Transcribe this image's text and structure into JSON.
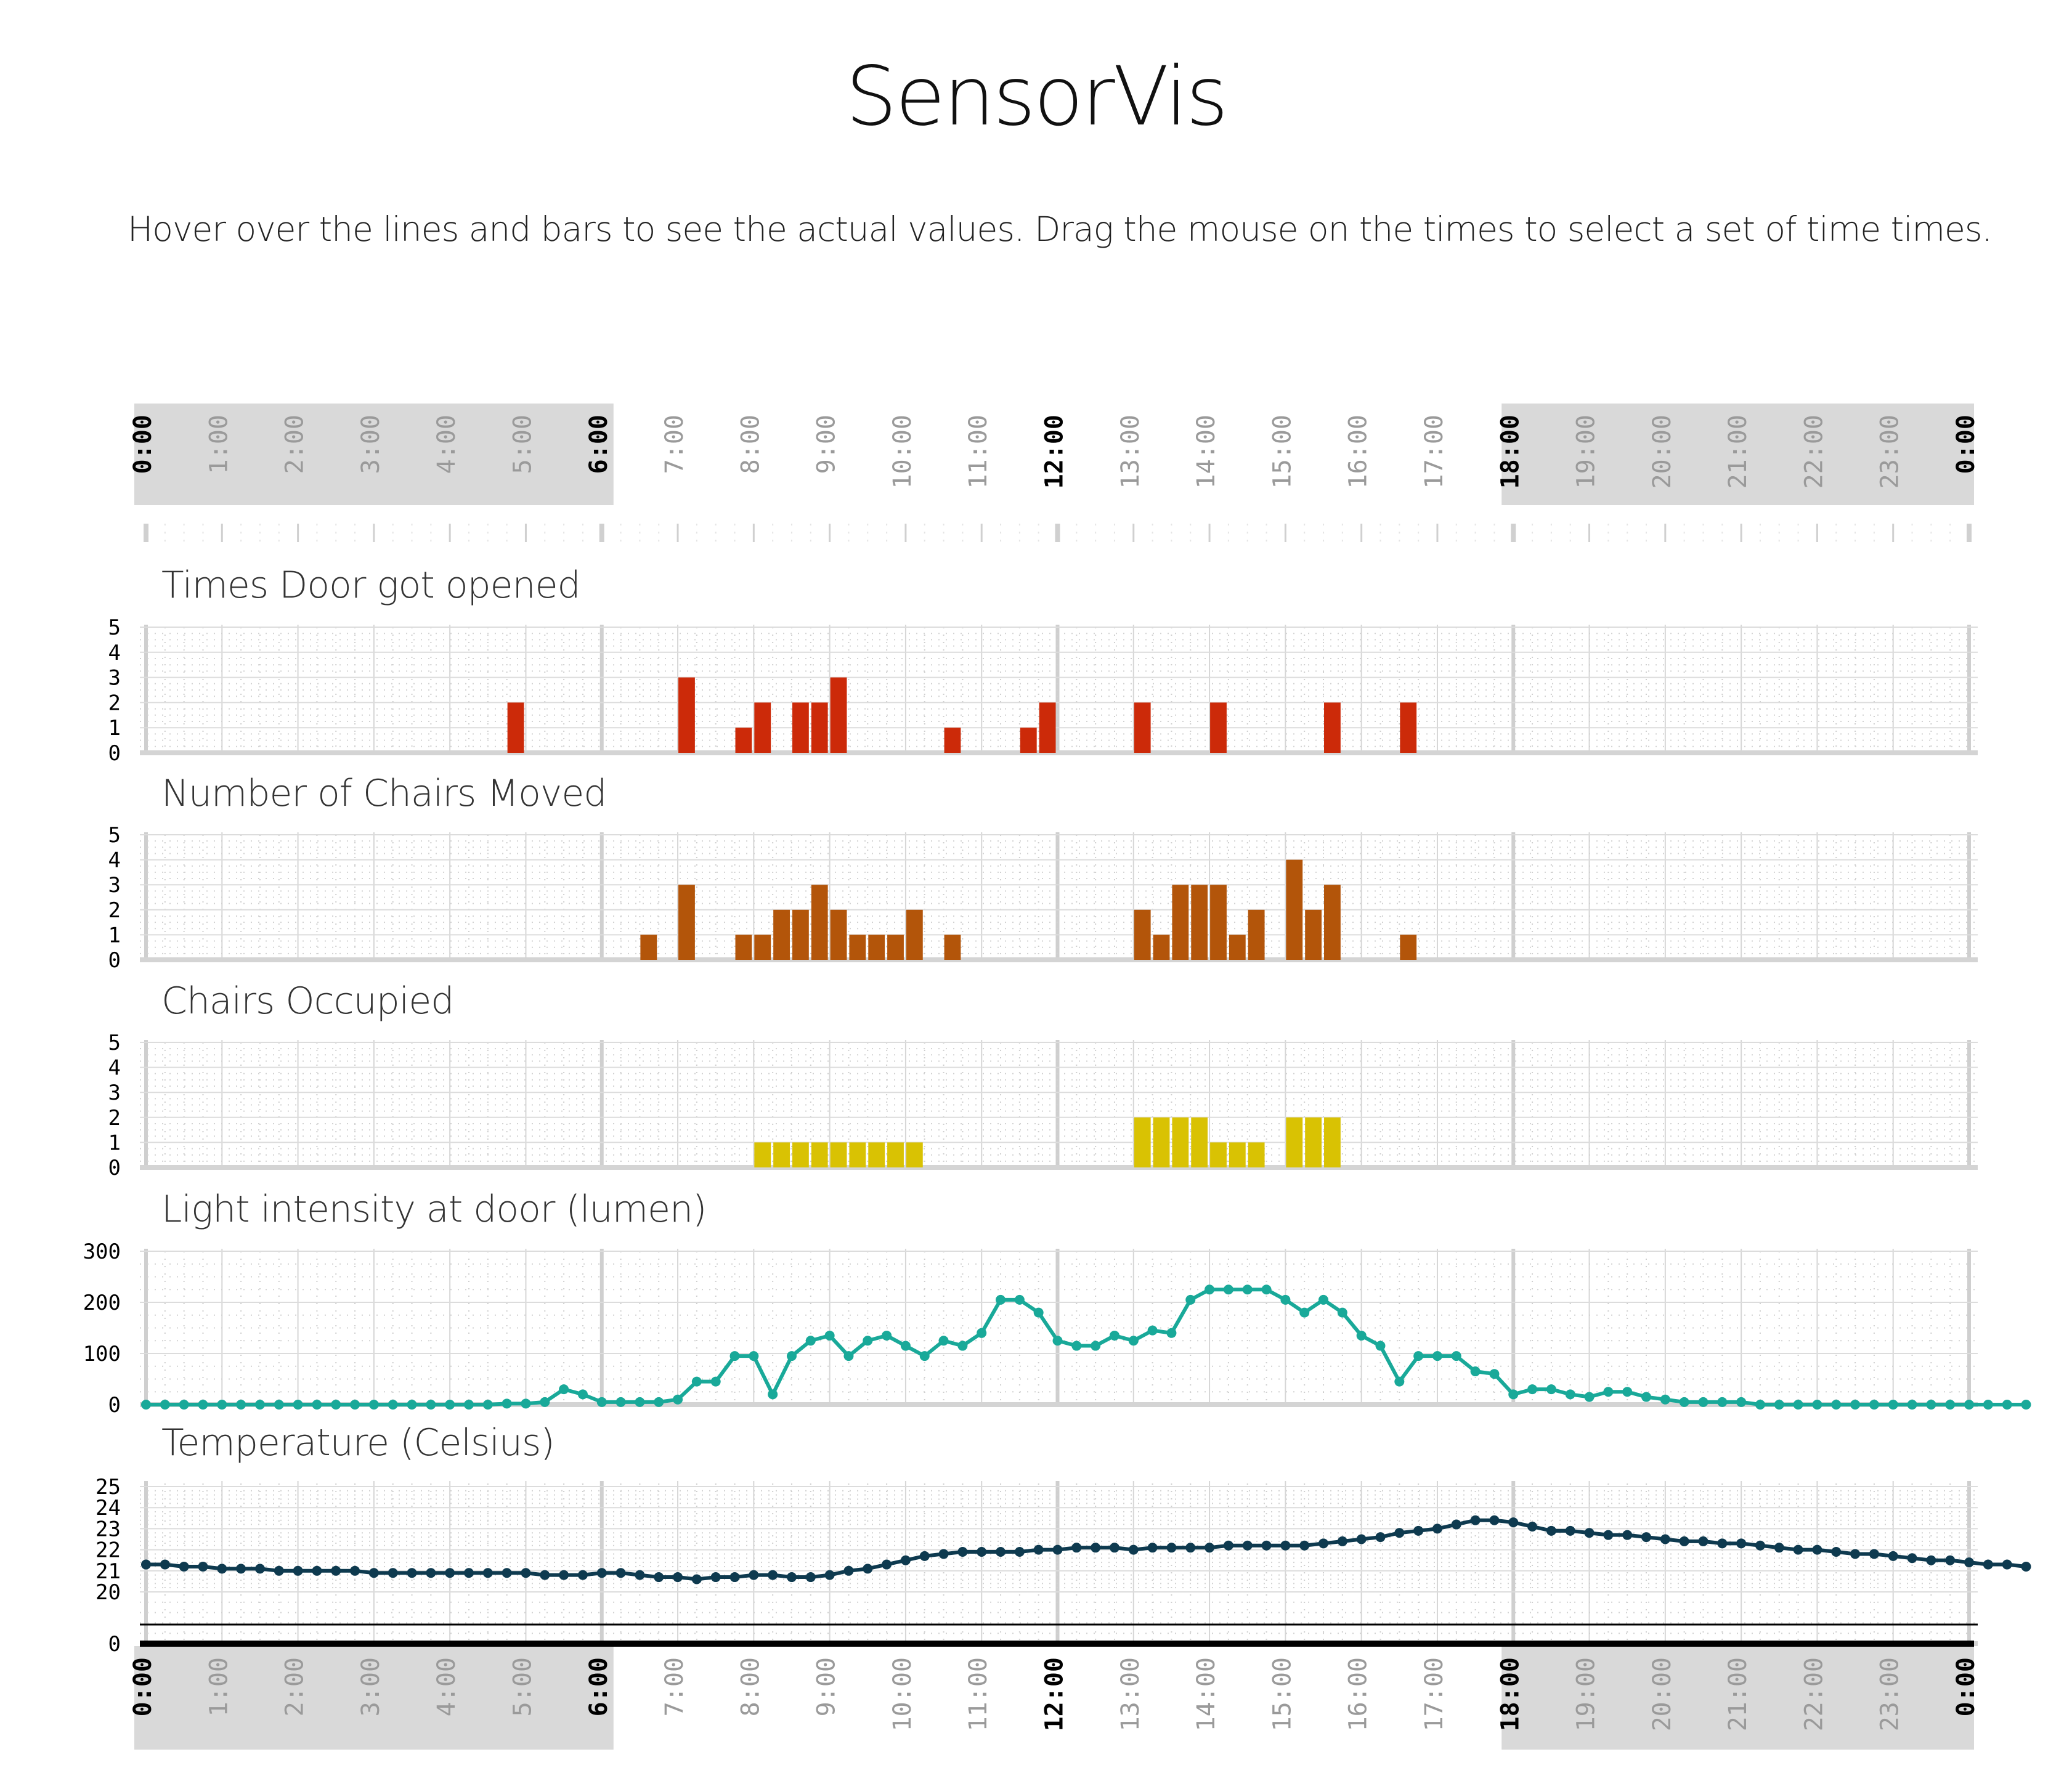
{
  "header": {
    "title": "SensorVis",
    "subtitle": "Hover over the lines and bars to see the actual values. Drag the mouse on the times to select a set of time times."
  },
  "time_axis": {
    "labels": [
      "0:00",
      "1:00",
      "2:00",
      "3:00",
      "4:00",
      "5:00",
      "6:00",
      "7:00",
      "8:00",
      "9:00",
      "10:00",
      "11:00",
      "12:00",
      "13:00",
      "14:00",
      "15:00",
      "16:00",
      "17:00",
      "18:00",
      "19:00",
      "20:00",
      "21:00",
      "22:00",
      "23:00",
      "0:00"
    ],
    "emphasized_hours": [
      0,
      6,
      12,
      18,
      24
    ],
    "shaded_ranges": [
      [
        0,
        6
      ],
      [
        18,
        24
      ]
    ],
    "shade_color": "#d9d9d9"
  },
  "chart_data": [
    {
      "type": "bar",
      "title": "Times Door got opened",
      "color": "#cc2a09",
      "ylim": [
        0,
        5
      ],
      "y_ticks": [
        0,
        1,
        2,
        3,
        4,
        5
      ],
      "x_unit": "hours (0-24), 15-minute bins",
      "points": [
        [
          4.75,
          2
        ],
        [
          7.0,
          3
        ],
        [
          7.75,
          1
        ],
        [
          8.0,
          2
        ],
        [
          8.5,
          2
        ],
        [
          8.75,
          2
        ],
        [
          9.0,
          3
        ],
        [
          10.5,
          1
        ],
        [
          11.5,
          1
        ],
        [
          11.75,
          2
        ],
        [
          13.0,
          2
        ],
        [
          14.0,
          2
        ],
        [
          15.5,
          2
        ],
        [
          16.5,
          2
        ]
      ]
    },
    {
      "type": "bar",
      "title": "Number of Chairs Moved",
      "color": "#b3550a",
      "ylim": [
        0,
        5
      ],
      "y_ticks": [
        0,
        1,
        2,
        3,
        4,
        5
      ],
      "x_unit": "hours (0-24), 15-minute bins",
      "points": [
        [
          6.5,
          1
        ],
        [
          7.0,
          3
        ],
        [
          7.75,
          1
        ],
        [
          8.0,
          1
        ],
        [
          8.25,
          2
        ],
        [
          8.5,
          2
        ],
        [
          8.75,
          3
        ],
        [
          9.0,
          2
        ],
        [
          9.25,
          1
        ],
        [
          9.5,
          1
        ],
        [
          9.75,
          1
        ],
        [
          10.0,
          2
        ],
        [
          10.5,
          1
        ],
        [
          13.0,
          2
        ],
        [
          13.25,
          1
        ],
        [
          13.5,
          3
        ],
        [
          13.75,
          3
        ],
        [
          14.0,
          3
        ],
        [
          14.25,
          1
        ],
        [
          14.5,
          2
        ],
        [
          15.0,
          4
        ],
        [
          15.25,
          2
        ],
        [
          15.5,
          3
        ],
        [
          16.5,
          1
        ]
      ]
    },
    {
      "type": "bar",
      "title": "Chairs Occupied",
      "color": "#d9c203",
      "ylim": [
        0,
        5
      ],
      "y_ticks": [
        0,
        1,
        2,
        3,
        4,
        5
      ],
      "x_unit": "hours (0-24), 15-minute bins",
      "points": [
        [
          8.0,
          1
        ],
        [
          8.25,
          1
        ],
        [
          8.5,
          1
        ],
        [
          8.75,
          1
        ],
        [
          9.0,
          1
        ],
        [
          9.25,
          1
        ],
        [
          9.5,
          1
        ],
        [
          9.75,
          1
        ],
        [
          10.0,
          1
        ],
        [
          13.0,
          2
        ],
        [
          13.25,
          2
        ],
        [
          13.5,
          2
        ],
        [
          13.75,
          2
        ],
        [
          14.0,
          1
        ],
        [
          14.25,
          1
        ],
        [
          14.5,
          1
        ],
        [
          15.0,
          2
        ],
        [
          15.25,
          2
        ],
        [
          15.5,
          2
        ]
      ]
    },
    {
      "type": "line",
      "title": "Light intensity at door (lumen)",
      "color": "#19a999",
      "ylim": [
        0,
        300
      ],
      "y_ticks": [
        0,
        100,
        200,
        300
      ],
      "x_unit": "hours (0-24), 15-minute samples",
      "x_start": 0,
      "x_step": 0.25,
      "values": [
        0,
        0,
        0,
        0,
        0,
        0,
        0,
        0,
        0,
        0,
        0,
        0,
        0,
        0,
        0,
        0,
        0,
        0,
        0,
        2,
        2,
        5,
        30,
        20,
        5,
        5,
        5,
        5,
        10,
        45,
        45,
        95,
        95,
        20,
        95,
        125,
        135,
        95,
        125,
        135,
        115,
        95,
        125,
        115,
        140,
        205,
        205,
        180,
        125,
        115,
        115,
        135,
        125,
        145,
        140,
        205,
        225,
        225,
        225,
        225,
        205,
        180,
        205,
        180,
        135,
        115,
        45,
        95,
        95,
        95,
        65,
        60,
        20,
        30,
        30,
        20,
        15,
        25,
        25,
        15,
        10,
        5,
        5,
        5,
        5,
        0,
        0,
        0,
        0,
        0,
        0,
        0,
        0,
        0,
        0,
        0,
        0,
        0,
        0,
        0
      ]
    },
    {
      "type": "line",
      "title": "Temperature (Celsius)",
      "color": "#0e3a4f",
      "ylim": [
        0,
        25
      ],
      "y_ticks": [
        0,
        20,
        21,
        22,
        23,
        24,
        25
      ],
      "x_unit": "hours (0-24), 15-minute samples",
      "x_start": 0,
      "x_step": 0.25,
      "values": [
        21.3,
        21.3,
        21.2,
        21.2,
        21.1,
        21.1,
        21.1,
        21.0,
        21.0,
        21.0,
        21.0,
        21.0,
        20.9,
        20.9,
        20.9,
        20.9,
        20.9,
        20.9,
        20.9,
        20.9,
        20.9,
        20.8,
        20.8,
        20.8,
        20.9,
        20.9,
        20.8,
        20.7,
        20.7,
        20.6,
        20.7,
        20.7,
        20.8,
        20.8,
        20.7,
        20.7,
        20.8,
        21.0,
        21.1,
        21.3,
        21.5,
        21.7,
        21.8,
        21.9,
        21.9,
        21.9,
        21.9,
        22.0,
        22.0,
        22.1,
        22.1,
        22.1,
        22.0,
        22.1,
        22.1,
        22.1,
        22.1,
        22.2,
        22.2,
        22.2,
        22.2,
        22.2,
        22.3,
        22.4,
        22.5,
        22.6,
        22.8,
        22.9,
        23.0,
        23.2,
        23.4,
        23.4,
        23.3,
        23.1,
        22.9,
        22.9,
        22.8,
        22.7,
        22.7,
        22.6,
        22.5,
        22.4,
        22.4,
        22.3,
        22.3,
        22.2,
        22.1,
        22.0,
        22.0,
        21.9,
        21.8,
        21.8,
        21.7,
        21.6,
        21.5,
        21.5,
        21.4,
        21.3,
        21.3,
        21.2
      ]
    }
  ]
}
